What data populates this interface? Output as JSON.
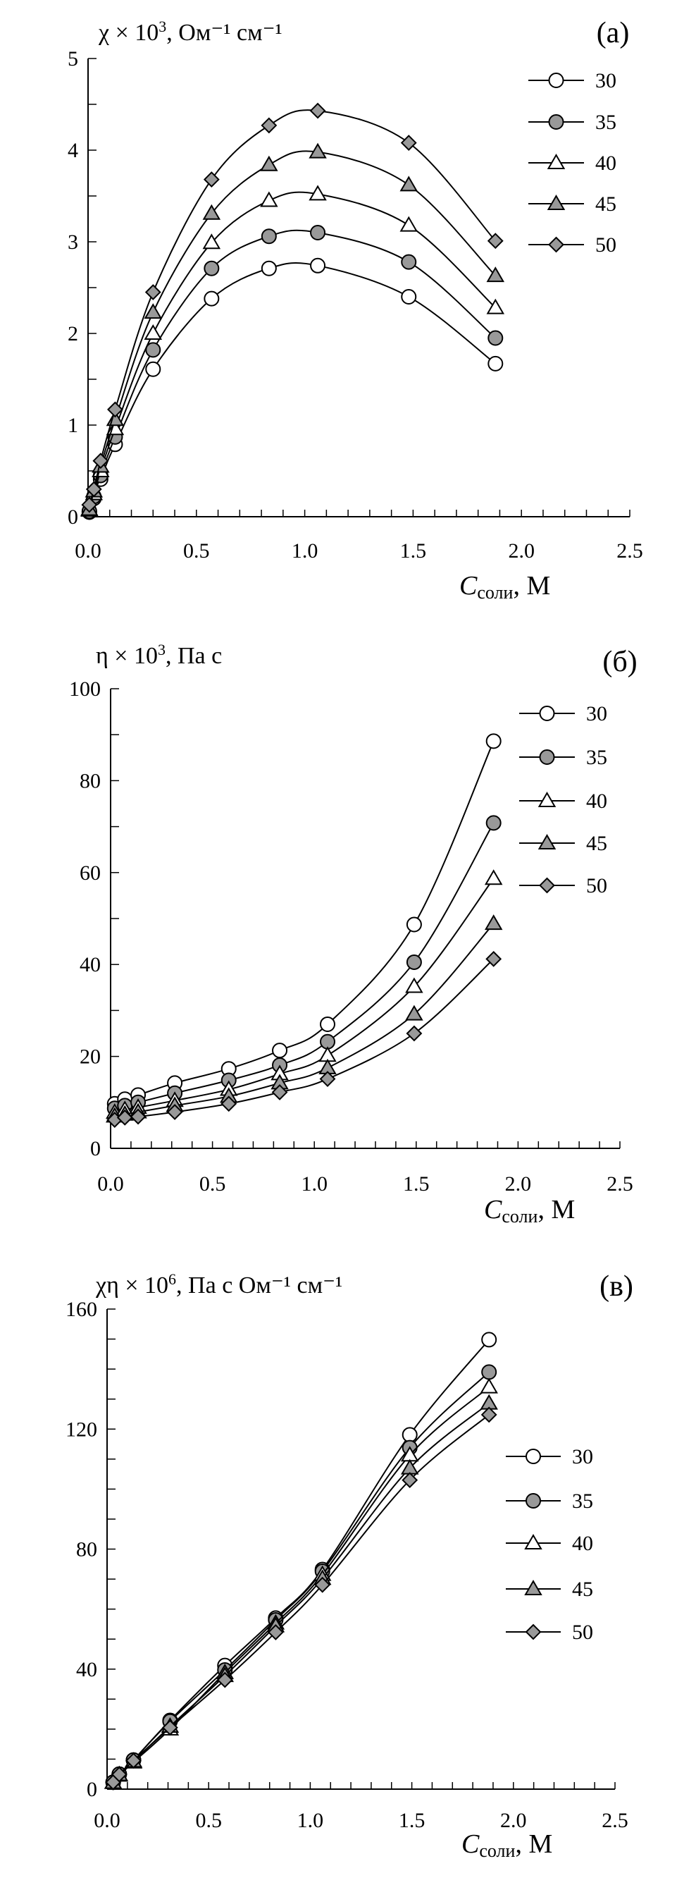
{
  "colors": {
    "line": "#000000",
    "open_marker": "#ffffff",
    "filled_marker": "#999999"
  },
  "chart_data": [
    {
      "type": "line",
      "panel_label": "(a)",
      "ylabel_main": "χ × 10",
      "ylabel_sup": "3",
      "ylabel_unit": ", Ом⁻¹ см⁻¹",
      "xlabel_var": "C",
      "xlabel_sub": "соли",
      "xlabel_unit": ", М",
      "xlim": [
        0,
        2.5
      ],
      "ylim": [
        0,
        5
      ],
      "xticks": [
        "0.0",
        "0.5",
        "1.0",
        "1.5",
        "2.0",
        "2.5"
      ],
      "yticks": [
        "0",
        "1",
        "2",
        "3",
        "4",
        "5"
      ],
      "legend_position": "top-right",
      "x": [
        0.006,
        0.027,
        0.058,
        0.125,
        0.3,
        0.57,
        0.835,
        1.06,
        1.48,
        1.88
      ],
      "series": [
        {
          "name": "30",
          "marker": "circle-open",
          "values": [
            0.05,
            0.2,
            0.41,
            0.79,
            1.61,
            2.38,
            2.71,
            2.74,
            2.4,
            1.67
          ]
        },
        {
          "name": "35",
          "marker": "circle-filled",
          "values": [
            0.06,
            0.22,
            0.45,
            0.87,
            1.82,
            2.71,
            3.06,
            3.1,
            2.78,
            1.95
          ]
        },
        {
          "name": "40",
          "marker": "triangle-open",
          "values": [
            0.07,
            0.25,
            0.5,
            0.96,
            2.0,
            2.99,
            3.45,
            3.52,
            3.18,
            2.28
          ]
        },
        {
          "name": "45",
          "marker": "triangle-filled",
          "values": [
            0.08,
            0.28,
            0.55,
            1.06,
            2.23,
            3.31,
            3.84,
            3.98,
            3.62,
            2.63
          ]
        },
        {
          "name": "50",
          "marker": "diamond-filled",
          "values": [
            0.13,
            0.3,
            0.61,
            1.17,
            2.45,
            3.68,
            4.27,
            4.43,
            4.08,
            3.01
          ]
        }
      ]
    },
    {
      "type": "line",
      "panel_label": "(б)",
      "ylabel_main": "η × 10",
      "ylabel_sup": "3",
      "ylabel_unit": ", Па с",
      "xlabel_var": "C",
      "xlabel_sub": "соли",
      "xlabel_unit": ", М",
      "xlim": [
        0,
        2.5
      ],
      "ylim": [
        0,
        100
      ],
      "xticks": [
        "0.0",
        "0.5",
        "1.0",
        "1.5",
        "2.0",
        "2.5"
      ],
      "yticks": [
        "0",
        "20",
        "40",
        "60",
        "80",
        "100"
      ],
      "legend_position": "top-right",
      "x": [
        0.02,
        0.07,
        0.135,
        0.315,
        0.58,
        0.83,
        1.065,
        1.49,
        1.88
      ],
      "series": [
        {
          "name": "30",
          "marker": "circle-open",
          "values": [
            9.7,
            10.7,
            11.6,
            14.2,
            17.3,
            21.3,
            27.0,
            48.7,
            88.6
          ]
        },
        {
          "name": "35",
          "marker": "circle-filled",
          "values": [
            8.7,
            9.3,
            10.0,
            12.0,
            14.8,
            18.1,
            23.2,
            40.5,
            70.8
          ]
        },
        {
          "name": "40",
          "marker": "triangle-open",
          "values": [
            7.8,
            8.4,
            8.9,
            10.4,
            12.8,
            16.2,
            20.2,
            35.2,
            58.7
          ]
        },
        {
          "name": "45",
          "marker": "triangle-filled",
          "values": [
            7.0,
            7.4,
            7.9,
            9.3,
            11.3,
            14.2,
            17.5,
            29.2,
            48.9
          ]
        },
        {
          "name": "50",
          "marker": "diamond-filled",
          "values": [
            6.2,
            6.7,
            6.9,
            7.9,
            9.7,
            12.2,
            15.1,
            25.0,
            41.2
          ]
        }
      ]
    },
    {
      "type": "line",
      "panel_label": "(в)",
      "ylabel_main": "χη × 10",
      "ylabel_sup": "6",
      "ylabel_unit": ", Па с Ом⁻¹ см⁻¹",
      "xlabel_var": "C",
      "xlabel_sub": "соли",
      "xlabel_unit": ", М",
      "xlim": [
        0,
        2.5
      ],
      "ylim": [
        0,
        160
      ],
      "xticks": [
        "0.0",
        "0.5",
        "1.0",
        "1.5",
        "2.0",
        "2.5"
      ],
      "yticks": [
        "0",
        "40",
        "80",
        "120",
        "160"
      ],
      "legend_position": "right",
      "x": [
        0.03,
        0.06,
        0.13,
        0.31,
        0.58,
        0.83,
        1.06,
        1.49,
        1.88
      ],
      "series": [
        {
          "name": "30",
          "marker": "circle-open",
          "values": [
            2.3,
            5.0,
            9.7,
            22.9,
            41.2,
            57.0,
            73.2,
            118.1,
            149.8
          ]
        },
        {
          "name": "35",
          "marker": "circle-filled",
          "values": [
            2.3,
            5.0,
            9.7,
            22.6,
            39.7,
            56.4,
            72.6,
            113.8,
            139.0
          ]
        },
        {
          "name": "40",
          "marker": "triangle-open",
          "values": [
            2.2,
            4.6,
            9.0,
            20.0,
            38.8,
            55.3,
            71.5,
            111.3,
            134.0
          ]
        },
        {
          "name": "45",
          "marker": "triangle-filled",
          "values": [
            2.2,
            4.8,
            9.3,
            20.9,
            37.8,
            54.4,
            70.2,
            107.0,
            128.6
          ]
        },
        {
          "name": "50",
          "marker": "diamond-filled",
          "values": [
            2.3,
            4.9,
            9.5,
            20.5,
            36.4,
            52.3,
            68.1,
            103.0,
            124.8
          ]
        }
      ]
    }
  ]
}
